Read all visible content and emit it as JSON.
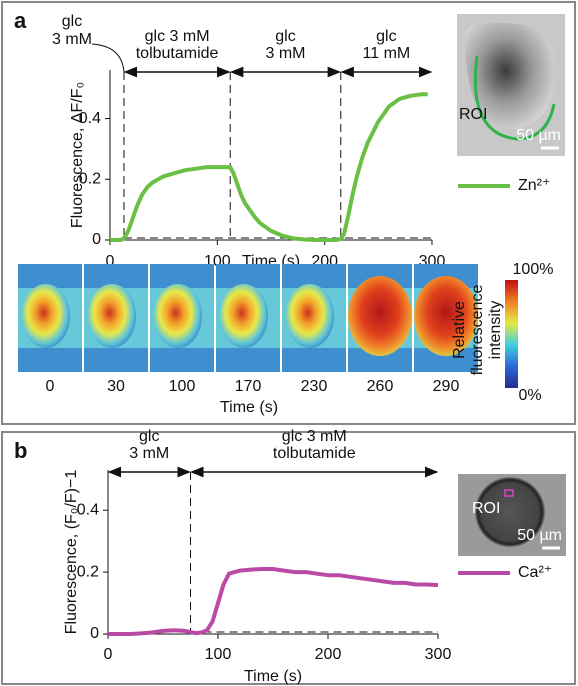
{
  "chart_data": [
    {
      "type": "line",
      "panel": "a",
      "xlabel": "Time (s)",
      "ylabel": "Fluorescence, ΔF/F₀",
      "xlim": [
        0,
        300
      ],
      "ylim": [
        0,
        0.56
      ],
      "xticks": [
        0,
        100,
        200,
        300
      ],
      "yticks": [
        0,
        0.2,
        0.4
      ],
      "vlines": [
        13,
        112,
        215
      ],
      "phases": [
        {
          "label": [
            "glc",
            "3 mM"
          ]
        },
        {
          "label": [
            "glc 3 mM",
            "tolbutamide"
          ]
        },
        {
          "label": [
            "glc",
            "3 mM"
          ]
        },
        {
          "label": [
            "glc",
            "11 mM"
          ]
        }
      ],
      "x": [
        0,
        5,
        10,
        13,
        17,
        20,
        25,
        30,
        35,
        40,
        50,
        60,
        70,
        80,
        90,
        100,
        110,
        112,
        115,
        118,
        122,
        126,
        130,
        135,
        140,
        150,
        160,
        170,
        180,
        190,
        200,
        210,
        215,
        218,
        222,
        226,
        230,
        235,
        240,
        250,
        260,
        270,
        280,
        290,
        296
      ],
      "series": [
        {
          "name": "Zn²⁺",
          "color": "#6abf45",
          "values": [
            0,
            0,
            0,
            0.005,
            0.03,
            0.06,
            0.11,
            0.15,
            0.175,
            0.19,
            0.21,
            0.22,
            0.23,
            0.235,
            0.24,
            0.24,
            0.24,
            0.24,
            0.22,
            0.19,
            0.15,
            0.12,
            0.1,
            0.075,
            0.055,
            0.03,
            0.015,
            0.006,
            0.002,
            0,
            0,
            0,
            0.003,
            0.02,
            0.08,
            0.15,
            0.21,
            0.27,
            0.32,
            0.39,
            0.44,
            0.465,
            0.475,
            0.48,
            0.48
          ]
        }
      ],
      "inset": {
        "roi_label": "ROI",
        "scale_label": "50 µm"
      },
      "image_strip": {
        "times": [
          0,
          30,
          100,
          170,
          230,
          260,
          290
        ],
        "xlabel": "Time (s)",
        "colorbar": {
          "max_label": "100%",
          "min_label": "0%",
          "label": [
            "Relative",
            "fluorescence",
            "intensity"
          ]
        }
      }
    },
    {
      "type": "line",
      "panel": "b",
      "xlabel": "Time (s)",
      "ylabel": "Fluorescence, (F₀/F)−1",
      "xlim": [
        0,
        300
      ],
      "ylim": [
        0,
        0.53
      ],
      "xticks": [
        0,
        100,
        200,
        300
      ],
      "yticks": [
        0,
        0.2,
        0.4
      ],
      "vlines": [
        75
      ],
      "phases": [
        {
          "label": [
            "glc",
            "3 mM"
          ]
        },
        {
          "label": [
            "glc 3 mM",
            "tolbutamide"
          ]
        }
      ],
      "x": [
        0,
        10,
        20,
        30,
        40,
        50,
        60,
        70,
        75,
        80,
        85,
        90,
        95,
        100,
        105,
        110,
        115,
        120,
        130,
        140,
        150,
        160,
        170,
        180,
        190,
        200,
        210,
        220,
        230,
        240,
        250,
        260,
        270,
        280,
        290,
        300
      ],
      "series": [
        {
          "name": "Ca²⁺",
          "color": "#b94aa6",
          "values": [
            0,
            0,
            0,
            0.002,
            0.005,
            0.01,
            0.012,
            0.01,
            0.006,
            0.003,
            0.005,
            0.012,
            0.04,
            0.1,
            0.16,
            0.195,
            0.2,
            0.205,
            0.208,
            0.21,
            0.21,
            0.205,
            0.2,
            0.2,
            0.195,
            0.19,
            0.19,
            0.185,
            0.18,
            0.175,
            0.17,
            0.165,
            0.165,
            0.16,
            0.16,
            0.158
          ]
        }
      ],
      "inset": {
        "roi_label": "ROI",
        "scale_label": "50 µm"
      }
    }
  ]
}
